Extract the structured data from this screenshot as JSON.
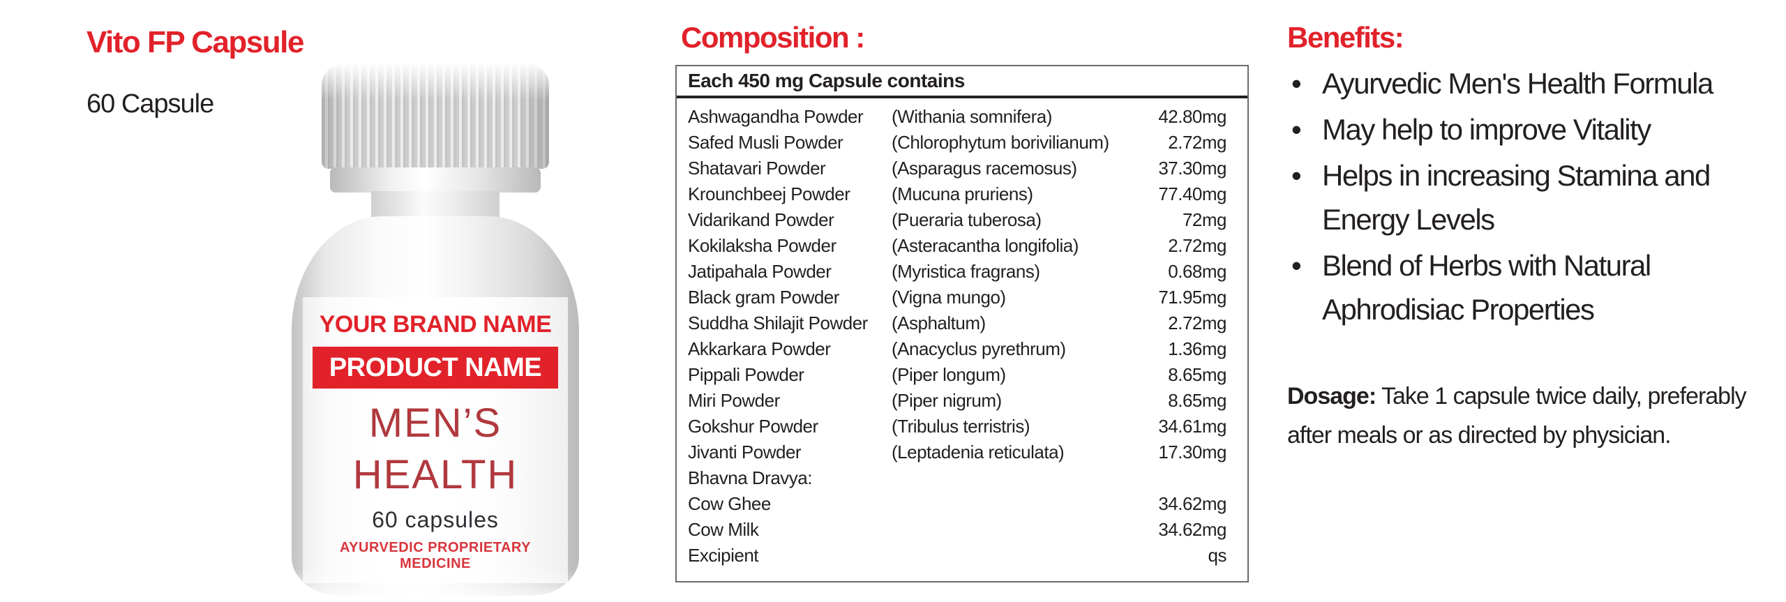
{
  "colors": {
    "accent_red": "#E1222A",
    "label_dark_red": "#B0393E",
    "text_dark": "#231F20"
  },
  "product": {
    "title": "Vito FP Capsule",
    "subtitle": "60 Capsule"
  },
  "bottle": {
    "brand_line": "YOUR BRAND NAME",
    "product_line": "PRODUCT NAME",
    "category_line1": "MEN’S",
    "category_line2": "HEALTH",
    "count_line": "60 capsules",
    "type_line": "AYURVEDIC PROPRIETARY MEDICINE"
  },
  "composition": {
    "heading": "Composition :",
    "table_header": "Each 450 mg Capsule contains",
    "rows": [
      {
        "name": "Ashwagandha Powder",
        "botanical": "(Withania somnifera)",
        "amount": "42.80mg"
      },
      {
        "name": "Safed Musli Powder",
        "botanical": "(Chlorophytum borivilianum)",
        "amount": "2.72mg"
      },
      {
        "name": "Shatavari Powder",
        "botanical": "(Asparagus racemosus)",
        "amount": "37.30mg"
      },
      {
        "name": "Krounchbeej Powder",
        "botanical": "(Mucuna pruriens)",
        "amount": "77.40mg"
      },
      {
        "name": "Vidarikand Powder",
        "botanical": "(Pueraria tuberosa)",
        "amount": "72mg"
      },
      {
        "name": "Kokilaksha Powder",
        "botanical": "(Asteracantha longifolia)",
        "amount": "2.72mg"
      },
      {
        "name": "Jatipahala Powder",
        "botanical": "(Myristica fragrans)",
        "amount": "0.68mg"
      },
      {
        "name": "Black gram Powder",
        "botanical": "(Vigna mungo)",
        "amount": "71.95mg"
      },
      {
        "name": "Suddha Shilajit Powder",
        "botanical": "(Asphaltum)",
        "amount": "2.72mg"
      },
      {
        "name": "Akkarkara Powder",
        "botanical": "(Anacyclus pyrethrum)",
        "amount": "1.36mg"
      },
      {
        "name": "Pippali Powder",
        "botanical": "(Piper longum)",
        "amount": "8.65mg"
      },
      {
        "name": "Miri Powder",
        "botanical": "(Piper nigrum)",
        "amount": "8.65mg"
      },
      {
        "name": "Gokshur Powder",
        "botanical": "(Tribulus terristris)",
        "amount": "34.61mg"
      },
      {
        "name": "Jivanti Powder",
        "botanical": "(Leptadenia reticulata)",
        "amount": "17.30mg"
      },
      {
        "name": "Bhavna Dravya:",
        "botanical": "",
        "amount": ""
      },
      {
        "name": "Cow Ghee",
        "botanical": "",
        "amount": "34.62mg"
      },
      {
        "name": "Cow Milk",
        "botanical": "",
        "amount": "34.62mg"
      },
      {
        "name": "Excipient",
        "botanical": "",
        "amount": "qs"
      }
    ]
  },
  "benefits": {
    "heading": "Benefits:",
    "bullet_glyph": "•",
    "items": [
      "Ayurvedic Men's Health Formula",
      "May help to improve Vitality",
      "Helps in increasing Stamina and Energy Levels",
      "Blend of Herbs with Natural Aphrodisiac Properties"
    ]
  },
  "dosage": {
    "label": "Dosage:",
    "text": "Take 1 capsule twice daily, preferably after meals or as directed by physician."
  }
}
